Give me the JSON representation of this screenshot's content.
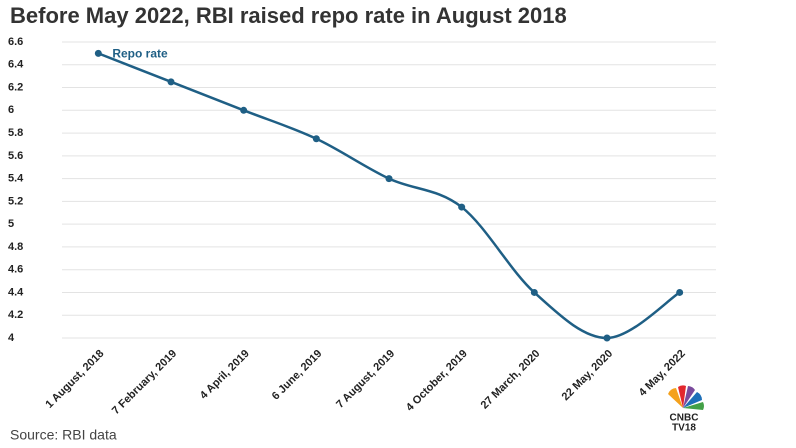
{
  "chart_data": {
    "type": "line",
    "title": "Before May 2022, RBI raised repo rate in August 2018",
    "categories": [
      "1 August, 2018",
      "7 February, 2019",
      "4 April, 2019",
      "6 June, 2019",
      "7 August, 2019",
      "4 October, 2019",
      "27 March, 2020",
      "22 May, 2020",
      "4 May, 2022"
    ],
    "series": [
      {
        "name": "Repo rate",
        "color": "#1f5f85",
        "values": [
          6.5,
          6.25,
          6.0,
          5.75,
          5.4,
          5.15,
          4.4,
          4.0,
          4.4
        ]
      }
    ],
    "ylim": [
      4,
      6.6
    ],
    "yticks": [
      4,
      4.2,
      4.4,
      4.6,
      4.8,
      5,
      5.2,
      5.4,
      5.6,
      5.8,
      6,
      6.2,
      6.4,
      6.6
    ],
    "grid": true,
    "smooth": true
  },
  "source": "Source: RBI data",
  "logo": {
    "line1": "CNBC",
    "line2": "TV18"
  }
}
